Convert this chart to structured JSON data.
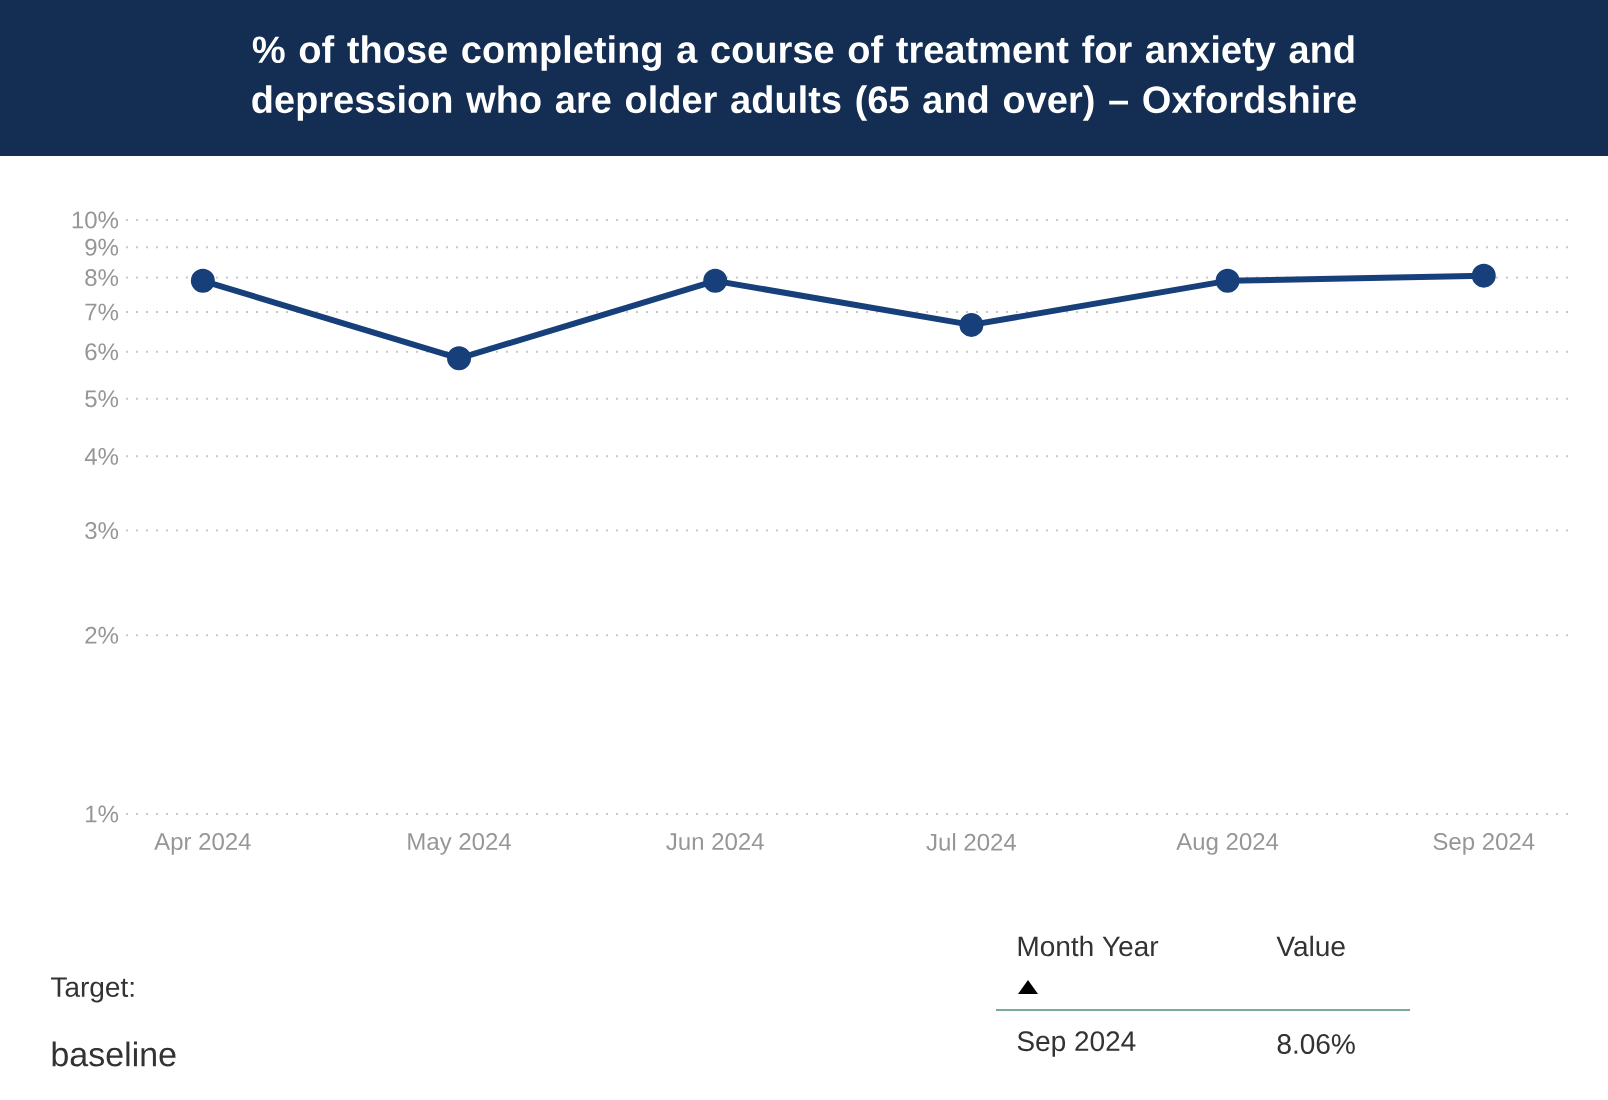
{
  "chart_data": {
    "type": "line",
    "title": "% of those completing a course of treatment for anxiety and depression who are older adults (65 and over) – Oxfordshire",
    "categories": [
      "Apr 2024",
      "May 2024",
      "Jun 2024",
      "Jul 2024",
      "Aug 2024",
      "Sep 2024"
    ],
    "series": [
      {
        "color": "#17407a",
        "values": [
          7.9,
          5.85,
          7.9,
          6.66,
          7.9,
          8.06
        ]
      }
    ],
    "log": "y",
    "ylim": [
      1,
      10
    ],
    "yticks": [
      {
        "value": 1,
        "label": "1%"
      },
      {
        "value": 2,
        "label": "2%"
      },
      {
        "value": 3,
        "label": "3%"
      },
      {
        "value": 4,
        "label": "4%"
      },
      {
        "value": 5,
        "label": "5%"
      },
      {
        "value": 6,
        "label": "6%"
      },
      {
        "value": 7,
        "label": "7%"
      },
      {
        "value": 8,
        "label": "8%"
      },
      {
        "value": 9,
        "label": "9%"
      },
      {
        "value": 10,
        "label": "10%"
      }
    ],
    "grid": "y",
    "marker": "circle",
    "line_style": "solid",
    "annotations": [
      "Target:",
      "baseline",
      "Month Year",
      "Value",
      "Sep 2024",
      "8.06%"
    ]
  }
}
